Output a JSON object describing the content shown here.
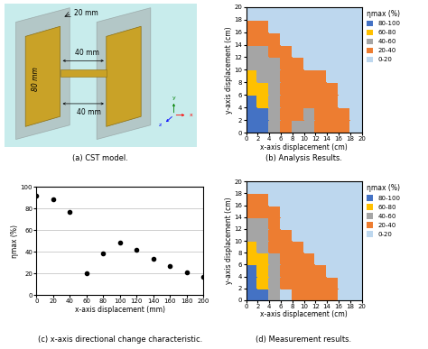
{
  "chart_data": [
    {
      "type": "diagram",
      "caption": "(a) CST model.",
      "labels": [
        "20 mm",
        "80 mm",
        "40 mm",
        "40 mm"
      ],
      "axes_labels": [
        "x",
        "y",
        "z"
      ]
    },
    {
      "type": "heatmap",
      "caption": "(b) Analysis Results.",
      "x_label": "x-axis displacement (cm)",
      "y_label": "y-axis displacement (cm)",
      "xlim": [
        0,
        20
      ],
      "ylim": [
        0,
        20
      ],
      "xticks": [
        0,
        2,
        4,
        6,
        8,
        10,
        12,
        14,
        16,
        18,
        20
      ],
      "yticks": [
        0,
        2,
        4,
        6,
        8,
        10,
        12,
        14,
        16,
        18,
        20
      ],
      "x_edges": [
        0,
        2,
        4,
        6,
        8,
        10,
        12,
        14,
        16,
        18,
        20
      ],
      "y_edges": [
        0,
        2,
        4,
        6,
        8,
        10,
        12,
        14,
        16,
        18,
        20
      ],
      "cells": [
        [
          90,
          82,
          50,
          25,
          40,
          45,
          38,
          30,
          24,
          18
        ],
        [
          88,
          80,
          48,
          25,
          38,
          42,
          36,
          28,
          22,
          15
        ],
        [
          82,
          72,
          45,
          28,
          34,
          38,
          32,
          25,
          18,
          12
        ],
        [
          75,
          62,
          42,
          30,
          30,
          32,
          28,
          20,
          14,
          10
        ],
        [
          65,
          58,
          42,
          32,
          26,
          25,
          20,
          15,
          10,
          8
        ],
        [
          55,
          50,
          40,
          30,
          20,
          16,
          14,
          10,
          8,
          6
        ],
        [
          45,
          42,
          35,
          25,
          15,
          12,
          10,
          8,
          6,
          5
        ],
        [
          35,
          32,
          26,
          18,
          12,
          10,
          8,
          6,
          5,
          4
        ],
        [
          25,
          22,
          18,
          12,
          10,
          8,
          6,
          5,
          4,
          3
        ],
        [
          15,
          14,
          12,
          10,
          8,
          6,
          5,
          4,
          3,
          2
        ]
      ],
      "levels": [
        0,
        20,
        40,
        60,
        80,
        100
      ],
      "level_labels": [
        "0-20",
        "20-40",
        "40-60",
        "60-80",
        "80-100"
      ],
      "colors": [
        "#bdd7ee",
        "#ed7d31",
        "#a5a5a5",
        "#ffc000",
        "#4472c4"
      ],
      "legend_title": "ηmax (%)"
    },
    {
      "type": "scatter",
      "caption": "(c) x-axis directional change characteristic.",
      "x_label": "x-axis displacement (mm)",
      "y_label": "ηmax (%)",
      "x": [
        0,
        20,
        40,
        60,
        80,
        100,
        120,
        140,
        160,
        180,
        200
      ],
      "values": [
        92,
        88,
        77,
        20,
        38,
        48,
        42,
        33,
        27,
        21,
        17
      ],
      "xlim": [
        0,
        200
      ],
      "ylim": [
        0,
        100
      ],
      "xticks": [
        0,
        20,
        40,
        60,
        80,
        100,
        120,
        140,
        160,
        180,
        200
      ],
      "yticks": [
        0,
        20,
        40,
        60,
        80,
        100
      ],
      "color": "#000000",
      "marker": "circle",
      "grid": true
    },
    {
      "type": "heatmap",
      "caption": "(d) Measurement results.",
      "x_label": "x-axis displacement (cm)",
      "y_label": "y-axis displacement (cm)",
      "xlim": [
        0,
        20
      ],
      "ylim": [
        0,
        20
      ],
      "xticks": [
        0,
        2,
        4,
        6,
        8,
        10,
        12,
        14,
        16,
        18,
        20
      ],
      "yticks": [
        0,
        2,
        4,
        6,
        8,
        10,
        12,
        14,
        16,
        18,
        20
      ],
      "x_edges": [
        0,
        2,
        4,
        6,
        8,
        10,
        12,
        14,
        16,
        18,
        20
      ],
      "y_edges": [
        0,
        2,
        4,
        6,
        8,
        10,
        12,
        14,
        16,
        18,
        20
      ],
      "cells": [
        [
          88,
          80,
          48,
          18,
          30,
          38,
          30,
          22,
          16,
          12
        ],
        [
          86,
          78,
          45,
          20,
          30,
          35,
          28,
          20,
          14,
          10
        ],
        [
          80,
          70,
          42,
          22,
          28,
          30,
          24,
          16,
          12,
          8
        ],
        [
          72,
          62,
          40,
          24,
          25,
          24,
          18,
          12,
          9,
          7
        ],
        [
          64,
          56,
          38,
          25,
          20,
          16,
          12,
          9,
          7,
          5
        ],
        [
          55,
          48,
          35,
          22,
          15,
          12,
          9,
          7,
          5,
          4
        ],
        [
          45,
          40,
          30,
          18,
          12,
          9,
          7,
          5,
          4,
          3
        ],
        [
          36,
          32,
          24,
          14,
          9,
          7,
          5,
          4,
          3,
          2
        ],
        [
          26,
          22,
          16,
          10,
          7,
          5,
          4,
          3,
          2,
          2
        ],
        [
          16,
          14,
          10,
          7,
          5,
          4,
          3,
          2,
          2,
          1
        ]
      ],
      "levels": [
        0,
        20,
        40,
        60,
        80,
        100
      ],
      "level_labels": [
        "0-20",
        "20-40",
        "40-60",
        "60-80",
        "80-100"
      ],
      "colors": [
        "#bdd7ee",
        "#ed7d31",
        "#a5a5a5",
        "#ffc000",
        "#4472c4"
      ],
      "legend_title": "ηmax (%)"
    }
  ]
}
